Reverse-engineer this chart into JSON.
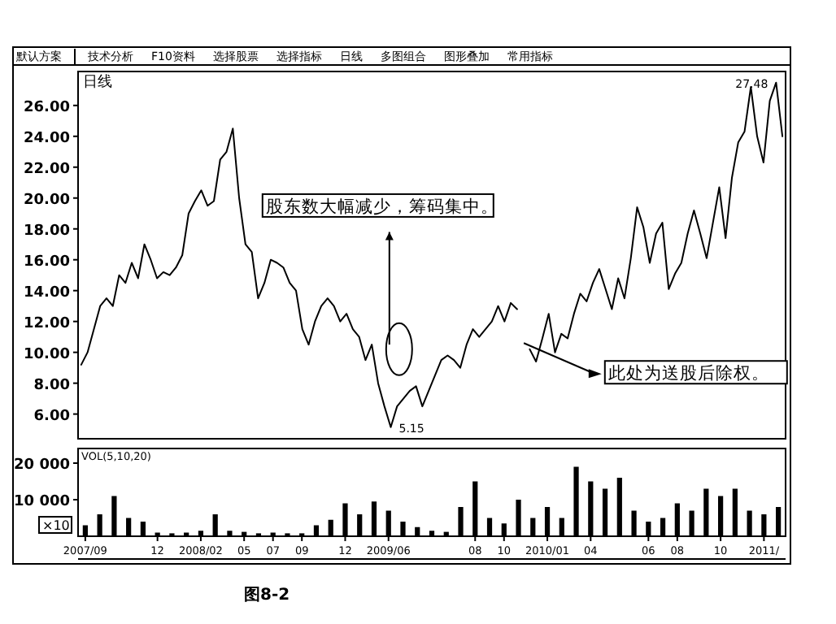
{
  "chart_data": [
    {
      "type": "line",
      "title": "日线",
      "tick_labels": "y",
      "grid": false,
      "ylim": [
        4.4,
        28.2
      ],
      "categories": [
        null,
        null,
        null,
        null,
        null,
        null,
        null,
        null,
        null,
        null,
        null,
        null,
        null,
        null,
        null,
        null,
        null,
        null,
        null,
        null,
        null,
        null,
        null,
        null,
        null,
        null,
        null,
        null,
        null,
        null,
        null,
        null,
        null,
        null,
        null,
        null,
        null,
        null,
        null,
        null,
        null,
        null,
        null,
        null,
        null,
        null,
        null,
        null,
        null,
        null,
        null,
        null,
        null,
        null,
        null,
        null,
        null,
        null,
        null,
        null,
        null,
        null,
        null,
        null,
        null,
        null,
        null,
        null,
        null,
        null,
        null,
        null,
        null,
        null,
        null,
        null,
        null,
        null,
        null,
        null,
        null,
        null,
        null,
        null,
        null,
        null,
        null,
        null,
        null,
        null,
        null,
        null,
        null,
        null,
        null,
        null,
        null,
        null,
        null,
        null,
        null,
        null,
        null,
        null,
        null,
        null,
        null,
        null,
        null,
        null,
        null,
        null
      ],
      "yticks": [
        {
          "value": 6,
          "label": "6.00"
        },
        {
          "value": 8,
          "label": "8.00"
        },
        {
          "value": 10,
          "label": "10.00"
        },
        {
          "value": 12,
          "label": "12.00"
        },
        {
          "value": 14,
          "label": "14.00"
        },
        {
          "value": 16,
          "label": "16.00"
        },
        {
          "value": 18,
          "label": "18.00"
        },
        {
          "value": 20,
          "label": "20.00"
        },
        {
          "value": 22,
          "label": "22.00"
        },
        {
          "value": 24,
          "label": "24.00"
        },
        {
          "value": 26,
          "label": "26.00"
        }
      ],
      "series": [
        {
          "color": "#000000",
          "values": [
            9.2,
            10.0,
            11.5,
            13.0,
            13.5,
            13.0,
            15.0,
            14.5,
            15.8,
            14.8,
            17.0,
            16.0,
            14.8,
            15.2,
            15.0,
            15.5,
            16.3,
            19.0,
            19.8,
            20.5,
            19.5,
            19.8,
            22.5,
            23.0,
            24.5,
            20.0,
            17.0,
            16.5,
            13.5,
            14.5,
            16.0,
            15.8,
            15.5,
            14.5,
            14.0,
            11.5,
            10.5,
            12.0,
            13.0,
            13.5,
            13.0,
            12.0,
            12.5,
            11.5,
            11.0,
            9.5,
            10.5,
            8.0,
            6.5,
            5.15,
            6.5,
            7.0,
            7.5,
            7.8,
            6.5,
            7.5,
            8.5,
            9.5,
            9.8,
            9.5,
            9.0,
            10.5,
            11.5,
            11.0,
            11.5,
            12.0,
            13.0,
            12.0,
            13.2,
            12.8,
            null,
            null,
            null,
            null,
            null,
            null,
            null,
            null,
            null,
            null,
            null,
            null,
            null,
            null,
            null,
            null,
            null,
            null,
            null,
            null,
            null,
            null,
            null,
            null,
            null,
            null,
            null,
            null,
            null,
            null,
            null,
            null,
            null,
            null,
            null,
            null,
            null,
            null,
            null,
            null,
            null,
            null
          ]
        },
        {
          "color": "#000000",
          "values": [
            null,
            null,
            null,
            null,
            null,
            null,
            null,
            null,
            null,
            null,
            null,
            null,
            null,
            null,
            null,
            null,
            null,
            null,
            null,
            null,
            null,
            null,
            null,
            null,
            null,
            null,
            null,
            null,
            null,
            null,
            null,
            null,
            null,
            null,
            null,
            null,
            null,
            null,
            null,
            null,
            null,
            null,
            null,
            null,
            null,
            null,
            null,
            null,
            null,
            null,
            null,
            null,
            null,
            null,
            null,
            null,
            null,
            null,
            null,
            null,
            null,
            null,
            null,
            null,
            null,
            null,
            null,
            null,
            null,
            null,
            null,
            10.2,
            9.4,
            10.9,
            12.5,
            10.0,
            11.2,
            10.9,
            12.5,
            13.8,
            13.3,
            14.5,
            15.4,
            14.1,
            12.8,
            14.8,
            13.5,
            16.1,
            19.4,
            18.1,
            15.8,
            17.7,
            18.4,
            14.1,
            15.1,
            15.8,
            17.7,
            19.2,
            17.7,
            16.1,
            18.4,
            20.7,
            17.4,
            21.3,
            23.6,
            24.3,
            27.2,
            24.0,
            22.3,
            26.3,
            27.48,
            24.0
          ]
        }
      ],
      "annotations": [
        "27.48",
        "5.15",
        "股东数大幅减少，筹码集中。",
        "此处为送股后除权。",
        "默认方案",
        "技术分析",
        "F10资料",
        "选择股票",
        "选择指标",
        "日线",
        "多图组合",
        "图形叠加",
        "常用指标",
        "图8-2"
      ]
    },
    {
      "type": "bar",
      "grid": false,
      "ylim": [
        0,
        24000
      ],
      "yticks": [
        {
          "value": 10000,
          "label": "10 000"
        },
        {
          "value": 20000,
          "label": "20 000"
        }
      ],
      "categories": [
        "2007/09",
        null,
        null,
        null,
        null,
        "12",
        null,
        null,
        "2008/02",
        null,
        null,
        "05",
        null,
        "07",
        null,
        "09",
        null,
        null,
        "12",
        null,
        null,
        "2009/06",
        null,
        null,
        null,
        null,
        null,
        "08",
        null,
        "10",
        null,
        null,
        "2010/01",
        null,
        null,
        "04",
        null,
        null,
        null,
        "06",
        null,
        "08",
        null,
        null,
        "10",
        null,
        null,
        "2011/",
        null
      ],
      "series": [
        {
          "color": "#000000",
          "values": [
            3000,
            6000,
            11000,
            5000,
            4000,
            1000,
            800,
            1000,
            1500,
            6000,
            1500,
            1200,
            800,
            1000,
            800,
            800,
            3000,
            4500,
            9000,
            6000,
            9500,
            7000,
            4000,
            2500,
            1500,
            1200,
            8000,
            15000,
            5000,
            3500,
            10000,
            5000,
            8000,
            5000,
            19000,
            15000,
            13000,
            16000,
            7000,
            4000,
            5000,
            9000,
            7000,
            13000,
            11000,
            13000,
            7000,
            6000,
            8000
          ]
        }
      ],
      "annotations": [
        "VOL(5,10,20)",
        "×10"
      ]
    }
  ]
}
